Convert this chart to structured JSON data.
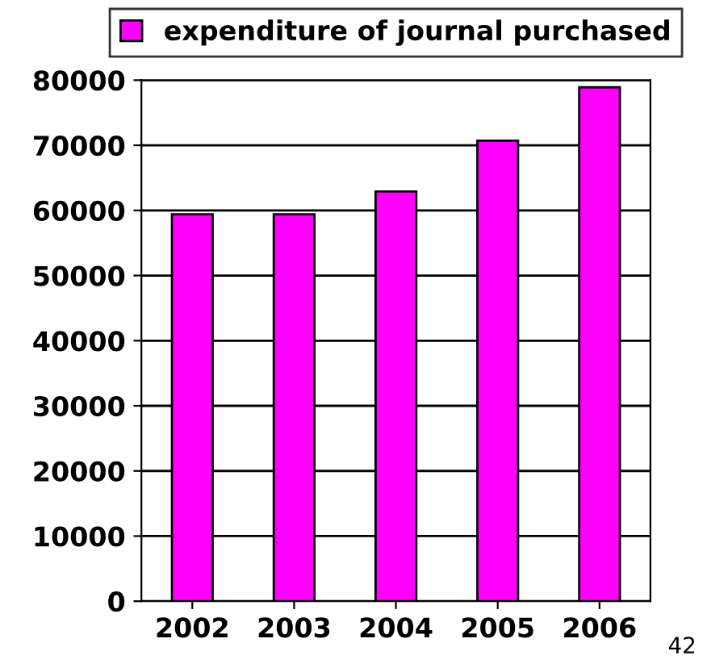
{
  "chart_data": {
    "type": "bar",
    "categories": [
      "2002",
      "2003",
      "2004",
      "2005",
      "2006"
    ],
    "series": [
      {
        "name": "expenditure of journal purchased",
        "color": "#ff00ff",
        "values": [
          59400,
          59400,
          62900,
          70700,
          78900
        ]
      }
    ],
    "ylim": [
      0,
      80000
    ],
    "yticks": [
      0,
      10000,
      20000,
      30000,
      40000,
      50000,
      60000,
      70000,
      80000
    ],
    "grid": "y",
    "legend": "top",
    "annotations": [
      "42"
    ]
  }
}
